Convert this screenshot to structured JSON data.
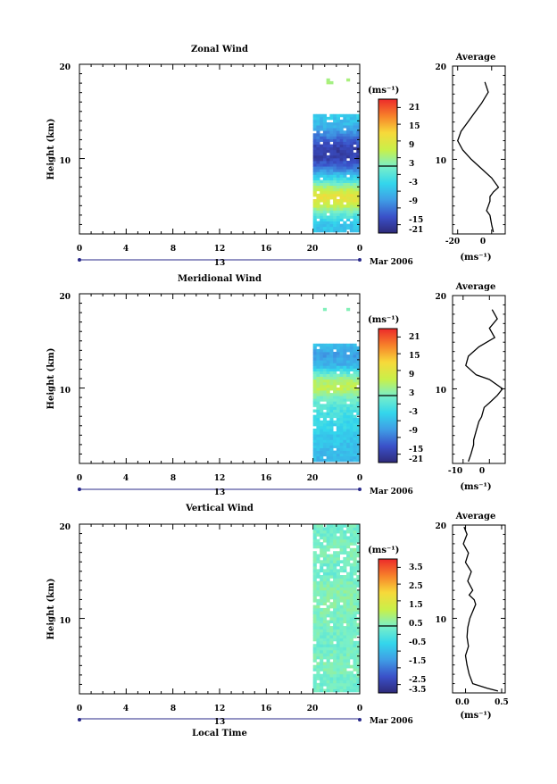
{
  "chart_data": [
    {
      "type": "heatmap",
      "title": "Zonal Wind",
      "ylabel": "Height (km)",
      "yticks": [
        "10",
        "20"
      ],
      "xticks": [
        "0",
        "4",
        "8",
        "12",
        "16",
        "20",
        "0"
      ],
      "xlim": [
        0,
        24
      ],
      "ylim": [
        2,
        20
      ],
      "date_tick": "13",
      "date_label": "Mar 2006",
      "xlabel": "",
      "colorbar": {
        "unit": "(ms⁻¹)",
        "ticks": [
          "21",
          "15",
          "9",
          "3",
          "-3",
          "-9",
          "-15",
          "-21"
        ],
        "range": [
          -24,
          24
        ]
      },
      "data_x_range": [
        20,
        24
      ],
      "data_y_range": [
        2.2,
        18.5
      ],
      "data_rows": [
        {
          "y": 18.3,
          "v": 3
        },
        {
          "y": 13.5,
          "v": -10
        },
        {
          "y": 12.5,
          "v": -14
        },
        {
          "y": 11,
          "v": -21
        },
        {
          "y": 10,
          "v": -20
        },
        {
          "y": 9,
          "v": -15
        },
        {
          "y": 8,
          "v": -6
        },
        {
          "y": 7,
          "v": 3
        },
        {
          "y": 6,
          "v": 11
        },
        {
          "y": 5,
          "v": 6
        },
        {
          "y": 4,
          "v": -3
        },
        {
          "y": 3,
          "v": -8
        }
      ],
      "average": {
        "title": "Average",
        "xlabel": "(ms⁻¹)",
        "xticks": [
          "-20",
          "0"
        ],
        "xlim": [
          -23,
          8
        ],
        "yticks": [
          "10",
          "20"
        ],
        "profile_x": [
          -4,
          -2,
          -6,
          -10,
          -14,
          -18,
          -20,
          -17,
          -12,
          -6,
          0,
          4,
          1,
          -1,
          -1,
          -2,
          -3,
          -1,
          0,
          1
        ],
        "profile_y": [
          18.3,
          17.2,
          16,
          15,
          14,
          13,
          12,
          11,
          10,
          9,
          8,
          7,
          6.5,
          6,
          5.5,
          5,
          4.5,
          4,
          3,
          2.2
        ]
      }
    },
    {
      "type": "heatmap",
      "title": "Meridional Wind",
      "ylabel": "Height (km)",
      "yticks": [
        "10",
        "20"
      ],
      "xticks": [
        "0",
        "4",
        "8",
        "12",
        "16",
        "20",
        "0"
      ],
      "xlim": [
        0,
        24
      ],
      "ylim": [
        2,
        20
      ],
      "date_tick": "13",
      "date_label": "Mar 2006",
      "xlabel": "",
      "colorbar": {
        "unit": "(ms⁻¹)",
        "ticks": [
          "21",
          "15",
          "9",
          "3",
          "-3",
          "-9",
          "-15",
          "-21"
        ],
        "range": [
          -24,
          24
        ]
      },
      "data_x_range": [
        20,
        24
      ],
      "data_y_range": [
        2.2,
        18.5
      ],
      "data_rows": [
        {
          "y": 18.3,
          "v": 2
        },
        {
          "y": 13.5,
          "v": -12
        },
        {
          "y": 12.5,
          "v": -10
        },
        {
          "y": 11,
          "v": 3
        },
        {
          "y": 10,
          "v": 6
        },
        {
          "y": 9,
          "v": 0
        },
        {
          "y": 8,
          "v": -3
        },
        {
          "y": 7,
          "v": -5
        },
        {
          "y": 6,
          "v": -6
        },
        {
          "y": 5,
          "v": -7
        },
        {
          "y": 4,
          "v": -8
        },
        {
          "y": 3,
          "v": -9
        }
      ],
      "average": {
        "title": "Average",
        "xlabel": "(ms⁻¹)",
        "xticks": [
          "-10",
          "0"
        ],
        "xlim": [
          -14,
          6
        ],
        "yticks": [
          "10",
          "20"
        ],
        "profile_x": [
          1,
          3,
          0,
          2,
          -4,
          -8,
          -9,
          -5,
          0,
          5,
          3,
          0,
          -2,
          -3,
          -4,
          -5,
          -6,
          -6,
          -7,
          -8
        ],
        "profile_y": [
          18.5,
          17.5,
          16.5,
          15.5,
          14.5,
          13.5,
          12.5,
          11.5,
          11,
          10,
          9.3,
          8.5,
          8,
          7,
          6.5,
          5.5,
          4.5,
          4,
          3,
          2.2
        ]
      }
    },
    {
      "type": "heatmap",
      "title": "Vertical Wind",
      "ylabel": "Height (km)",
      "yticks": [
        "10",
        "20"
      ],
      "xticks": [
        "0",
        "4",
        "8",
        "12",
        "16",
        "20",
        "0"
      ],
      "xlim": [
        0,
        24
      ],
      "ylim": [
        2,
        20
      ],
      "date_tick": "13",
      "date_label": "Mar 2006",
      "xlabel": "Local Time",
      "colorbar": {
        "unit": "(ms⁻¹)",
        "ticks": [
          "3.5",
          "2.5",
          "1.5",
          "0.5",
          "-0.5",
          "-1.5",
          "-2.5",
          "-3.5"
        ],
        "range": [
          -4,
          4
        ]
      },
      "data_x_range": [
        20,
        24
      ],
      "data_y_range": [
        2.2,
        20
      ],
      "data_rows": [
        {
          "y": 19,
          "v": -0.1
        },
        {
          "y": 17,
          "v": 0.1
        },
        {
          "y": 15,
          "v": -0.2
        },
        {
          "y": 13,
          "v": 0.2
        },
        {
          "y": 11,
          "v": 0.1
        },
        {
          "y": 9,
          "v": 0
        },
        {
          "y": 7,
          "v": -0.1
        },
        {
          "y": 5,
          "v": 0.1
        },
        {
          "y": 3,
          "v": -0.1
        }
      ],
      "average": {
        "title": "Average",
        "xlabel": "(ms⁻¹)",
        "xticks": [
          "0.0",
          "0.5"
        ],
        "xlim": [
          -0.18,
          0.55
        ],
        "yticks": [
          "10",
          "20"
        ],
        "profile_x": [
          -0.02,
          0.02,
          -0.03,
          0.04,
          0.0,
          0.08,
          0.03,
          0.1,
          0.05,
          0.12,
          0.14,
          0.06,
          0.03,
          0.02,
          0.04,
          0.0,
          0.02,
          0.05,
          0.1,
          0.3,
          0.45
        ],
        "profile_y": [
          19.8,
          19,
          18,
          17,
          16,
          15,
          14,
          13,
          12.5,
          12,
          11.5,
          10,
          9,
          8,
          7,
          6,
          5,
          4,
          3,
          2.5,
          2.2
        ]
      }
    }
  ]
}
